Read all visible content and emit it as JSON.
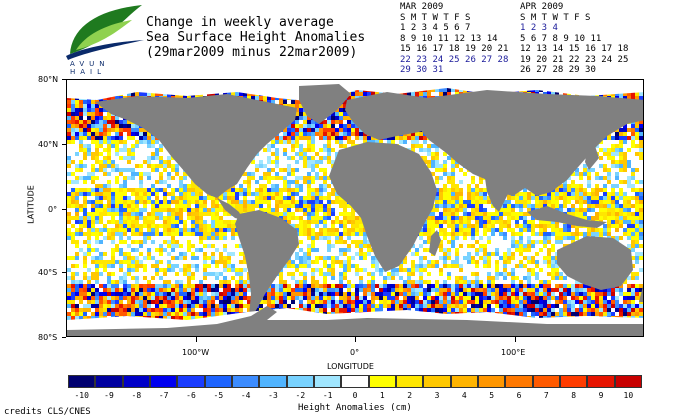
{
  "logo": {
    "text": "AVUN HAIL",
    "colors": {
      "leaf_dark": "#1f7a1f",
      "leaf_light": "#8fd14f",
      "swoosh": "#0a2a6a"
    }
  },
  "title": {
    "line1": "Change in weekly average",
    "line2": "Sea Surface Height Anomalies",
    "line3": "(29mar2009 minus 22mar2009)"
  },
  "calendars": [
    {
      "month": "MAR 2009",
      "header": "S M T W T F S",
      "rows": [
        {
          "text": "1 2 3 4 5 6 7",
          "highlight": false
        },
        {
          "text": "8 9 10 11 12 13 14",
          "highlight": false
        },
        {
          "text": "15 16 17 18 19 20 21",
          "highlight": false
        },
        {
          "text": "22 23 24 25 26 27 28",
          "highlight": true
        },
        {
          "text": "29 30 31",
          "highlight": true
        }
      ]
    },
    {
      "month": "APR 2009",
      "header": "S M T W T F S",
      "rows": [
        {
          "text": "1 2 3 4",
          "highlight": true
        },
        {
          "text": "5 6 7 8 9 10 11",
          "highlight": false
        },
        {
          "text": "12 13 14 15 16 17 18",
          "highlight": false
        },
        {
          "text": "19 20 21 22 23 24 25",
          "highlight": false
        },
        {
          "text": "26 27 28 29 30",
          "highlight": false
        }
      ]
    }
  ],
  "map": {
    "ylabel": "LATITUDE",
    "xlabel": "LONGITUDE",
    "lat_ticks": [
      "80°N",
      "40°N",
      "0°",
      "40°S",
      "80°S"
    ],
    "lon_ticks": [
      "100°W",
      "0°",
      "100°E"
    ],
    "colors": {
      "land": "#808080",
      "ice": "#ffffff"
    }
  },
  "colorbar": {
    "label": "Height Anomalies (cm)",
    "values": [
      "-10",
      "-9",
      "-8",
      "-7",
      "-6",
      "-5",
      "-4",
      "-3",
      "-2",
      "-1",
      "0",
      "1",
      "2",
      "3",
      "4",
      "5",
      "6",
      "7",
      "8",
      "9",
      "10"
    ],
    "colors": [
      "#000070",
      "#0000a0",
      "#0000c8",
      "#0000f0",
      "#1a3cff",
      "#1e64ff",
      "#3c8cff",
      "#50b4ff",
      "#78d2ff",
      "#a0e6ff",
      "#ffffff",
      "#ffff00",
      "#ffe600",
      "#ffc800",
      "#ffb400",
      "#ff9600",
      "#ff7800",
      "#ff5a00",
      "#ff3c00",
      "#e61400",
      "#c80000"
    ]
  },
  "credits": "credits CLS/CNES"
}
